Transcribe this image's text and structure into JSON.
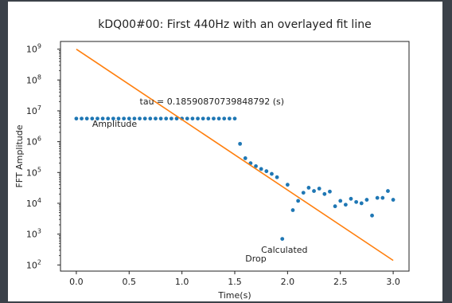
{
  "chart_data": {
    "type": "scatter",
    "title": "kDQ00#00: First 440Hz with an overlayed fit line",
    "xlabel": "Time(s)",
    "ylabel": "FFT Amplitude",
    "xlim": [
      -0.15,
      3.15
    ],
    "ylim_log10": [
      1.8,
      9.25
    ],
    "yscale": "log",
    "grid": false,
    "x_ticks": [
      0.0,
      0.5,
      1.0,
      1.5,
      2.0,
      2.5,
      3.0
    ],
    "x_tick_labels": [
      "0.0",
      "0.5",
      "1.0",
      "1.5",
      "2.0",
      "2.5",
      "3.0"
    ],
    "y_ticks": [
      {
        "base": "10",
        "exp": "2",
        "value": 100
      },
      {
        "base": "10",
        "exp": "3",
        "value": 1000
      },
      {
        "base": "10",
        "exp": "4",
        "value": 10000
      },
      {
        "base": "10",
        "exp": "5",
        "value": 100000
      },
      {
        "base": "10",
        "exp": "6",
        "value": 1000000
      },
      {
        "base": "10",
        "exp": "7",
        "value": 10000000
      },
      {
        "base": "10",
        "exp": "8",
        "value": 100000000
      },
      {
        "base": "10",
        "exp": "9",
        "value": 1000000000
      }
    ],
    "series": [
      {
        "kind": "points",
        "color": "#1f77b4",
        "x": [
          0.0,
          0.05,
          0.1,
          0.15,
          0.2,
          0.25,
          0.3,
          0.35,
          0.4,
          0.45,
          0.5,
          0.55,
          0.6,
          0.65,
          0.7,
          0.75,
          0.8,
          0.85,
          0.9,
          0.95,
          1.0,
          1.05,
          1.1,
          1.15,
          1.2,
          1.25,
          1.3,
          1.35,
          1.4,
          1.45,
          1.5,
          1.55,
          1.6,
          1.65,
          1.7,
          1.75,
          1.8,
          1.85,
          1.9,
          1.95,
          2.0,
          2.05,
          2.1,
          2.15,
          2.2,
          2.25,
          2.3,
          2.35,
          2.4,
          2.45,
          2.5,
          2.55,
          2.6,
          2.65,
          2.7,
          2.75,
          2.8,
          2.85,
          2.9,
          2.95,
          3.0
        ],
        "y": [
          5600000,
          5600000,
          5600000,
          5600000,
          5600000,
          5600000,
          5600000,
          5600000,
          5600000,
          5600000,
          5600000,
          5600000,
          5600000,
          5600000,
          5600000,
          5600000,
          5600000,
          5600000,
          5600000,
          5600000,
          5600000,
          5600000,
          5600000,
          5600000,
          5600000,
          5600000,
          5600000,
          5600000,
          5600000,
          5600000,
          5600000,
          850000,
          290000,
          200000,
          160000,
          130000,
          110000,
          90000,
          70000,
          700,
          40000,
          6000,
          12000,
          22000,
          32000,
          25000,
          30000,
          20000,
          24000,
          8000,
          12000,
          9000,
          14000,
          11000,
          10000,
          13000,
          4000,
          15000,
          15000,
          25000,
          13000
        ]
      },
      {
        "kind": "fit-line",
        "color": "#ff7f0e",
        "x": [
          0.0,
          3.0
        ],
        "y": [
          1000000000,
          140
        ]
      }
    ],
    "annotations": [
      {
        "text": "tau = 0.18590870739848792 (s)",
        "x": 0.6,
        "y": 16000000
      },
      {
        "text": "Amplitude",
        "x": 0.15,
        "y": 3000000
      },
      {
        "text": "Calculated",
        "x": 1.75,
        "y": 250,
        "anchor": "end"
      },
      {
        "text": "Drop",
        "x": 1.6,
        "y": 130
      }
    ]
  }
}
